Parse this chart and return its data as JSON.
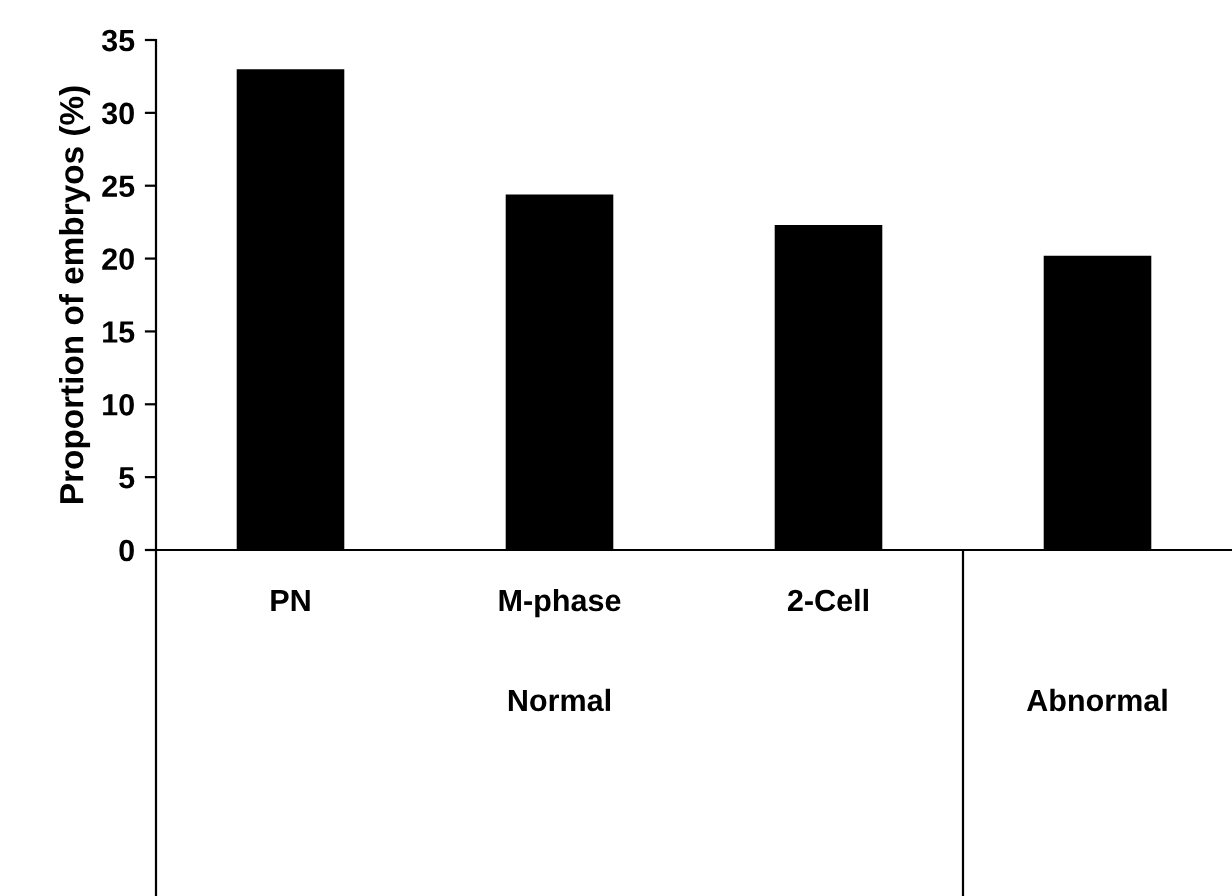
{
  "chart_data": {
    "type": "bar",
    "ylabel": "Proportion of embryos (%)",
    "categories": [
      "PN",
      "M-phase",
      "2-Cell",
      null
    ],
    "values": [
      33.0,
      24.4,
      22.3,
      20.2
    ],
    "color": "#000000",
    "ylim": [
      0,
      35
    ],
    "yticks": [
      0,
      5,
      10,
      15,
      20,
      25,
      30,
      35
    ],
    "grid": false,
    "legend": false,
    "annotations": [
      "Normal",
      "Abnormal"
    ]
  }
}
